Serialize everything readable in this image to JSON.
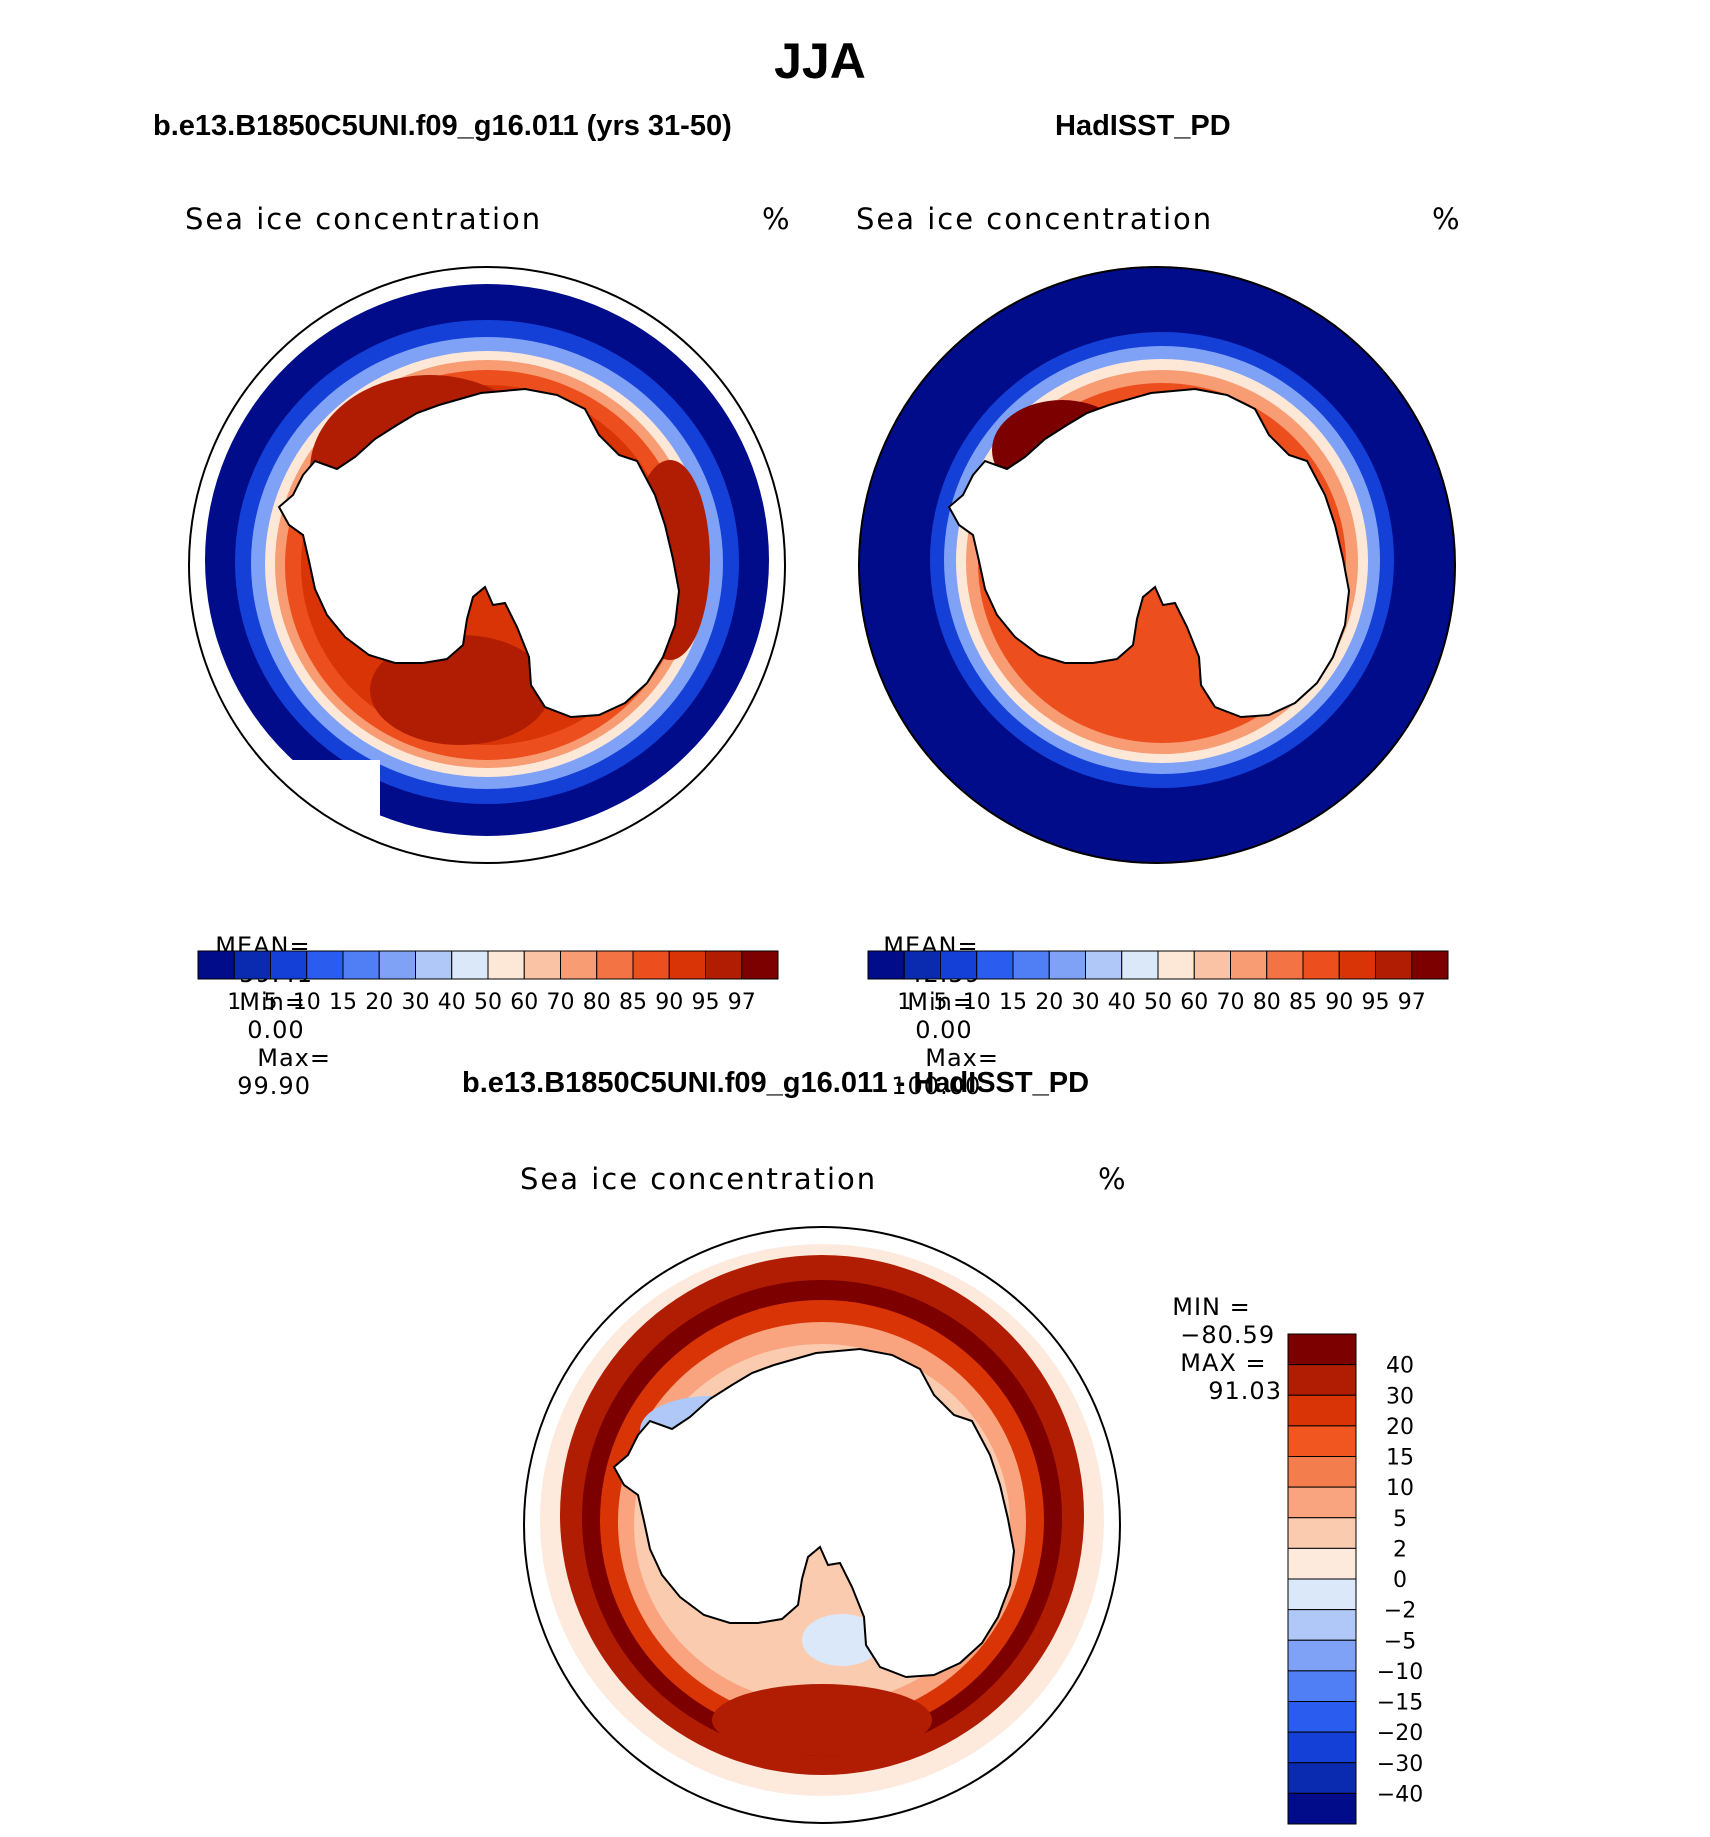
{
  "figure": {
    "season": "JJA"
  },
  "panels": {
    "model": {
      "title": "b.e13.B1850C5UNI.f09_g16.011 (yrs 31-50)",
      "variable": "Sea ice concentration",
      "units": "%",
      "stats": {
        "mean_label": "MEAN=",
        "mean": "59.41",
        "min_label": "Min=",
        "min": "0.00",
        "max_label": "Max=",
        "max": "99.90"
      }
    },
    "obs": {
      "title": "HadISST_PD",
      "variable": "Sea ice concentration",
      "units": "%",
      "stats": {
        "mean_label": "MEAN=",
        "mean": "42.59",
        "min_label": "Min=",
        "min": "0.00",
        "max_label": "Max=",
        "max": "100.00"
      }
    },
    "diff": {
      "title": "b.e13.B1850C5UNI.f09_g16.011 - HadISST_PD",
      "variable": "Sea ice concentration",
      "units": "%",
      "stats": {
        "min_label": "MIN =",
        "min": "−80.59",
        "max_label": "MAX =",
        "max": "91.03"
      }
    }
  },
  "colorbar_abs": {
    "ticks": [
      "1",
      "5",
      "10",
      "15",
      "20",
      "30",
      "40",
      "50",
      "60",
      "70",
      "80",
      "85",
      "90",
      "95",
      "97"
    ],
    "colors": [
      "#000c8a",
      "#0a2ab0",
      "#1440d8",
      "#2a5cf0",
      "#4f7ef5",
      "#7fa2f7",
      "#b0c8f8",
      "#dbe8fa",
      "#fde8d8",
      "#fbc3a6",
      "#f89c74",
      "#f37345",
      "#ec4e1e",
      "#d93405",
      "#b01d02",
      "#7c0000"
    ]
  },
  "colorbar_diff": {
    "ticks": [
      "40",
      "30",
      "20",
      "15",
      "10",
      "5",
      "2",
      "0",
      "−2",
      "−5",
      "−10",
      "−15",
      "−20",
      "−30",
      "−40"
    ],
    "colors": [
      "#7c0000",
      "#b01d02",
      "#d93405",
      "#f25620",
      "#f37d4d",
      "#f9a47e",
      "#fbcbb0",
      "#fdeadd",
      "#dbe8fa",
      "#b0c8f8",
      "#7fa2f7",
      "#4f7ef5",
      "#2a5cf0",
      "#1440d8",
      "#0a2ab0",
      "#000c8a"
    ]
  }
}
